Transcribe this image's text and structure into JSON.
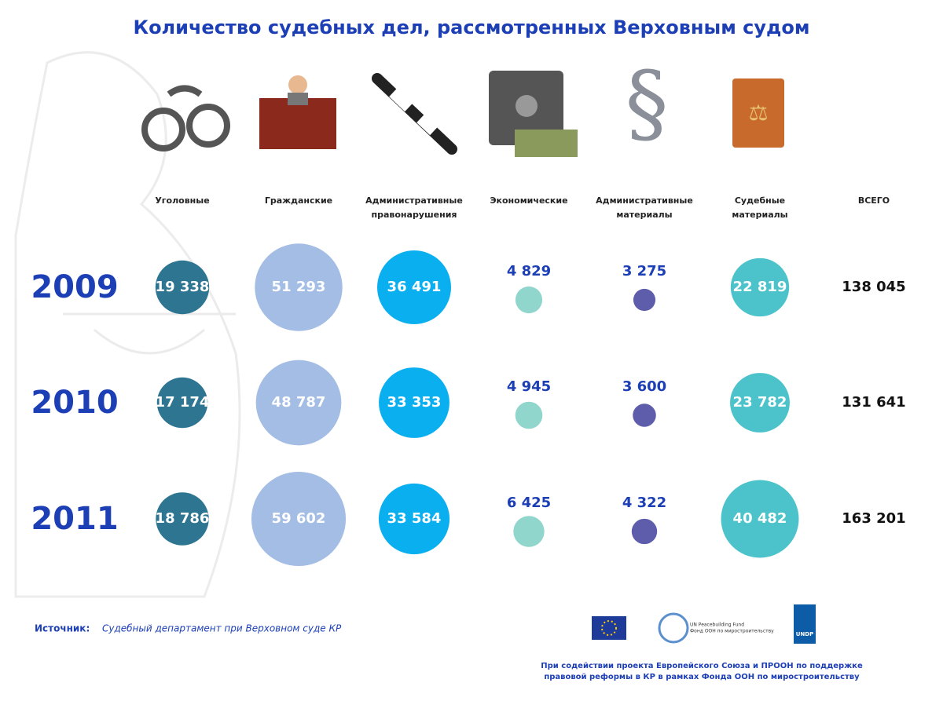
{
  "chart_data": {
    "type": "bubble",
    "title": "Количество судебных дел, рассмотренных Верховным судом",
    "categories": [
      "Уголовные",
      "Гражданские",
      "Административные правонарушения",
      "Экономические",
      "Административные материалы",
      "Судебные материалы"
    ],
    "colors": [
      "#2e7592",
      "#a3bde4",
      "#0aaff0",
      "#90d6cc",
      "#5d5dac",
      "#4cc3cb"
    ],
    "total_name": "ВСЕГО",
    "series": [
      {
        "name": "2009",
        "values": [
          19338,
          51293,
          36491,
          4829,
          3275,
          22819
        ],
        "value_labels": [
          "19 338",
          "51 293",
          "36 491",
          "4 829",
          "3 275",
          "22 819"
        ],
        "total": 138045,
        "total_label": "138 045"
      },
      {
        "name": "2010",
        "values": [
          17174,
          48787,
          33353,
          4945,
          3600,
          23782
        ],
        "value_labels": [
          "17 174",
          "48 787",
          "33 353",
          "4 945",
          "3 600",
          "23 782"
        ],
        "total": 131641,
        "total_label": "131 641"
      },
      {
        "name": "2011",
        "values": [
          18786,
          59602,
          33584,
          6425,
          4322,
          40482
        ],
        "value_labels": [
          "18 786",
          "59 602",
          "33 584",
          "6 425",
          "4 322",
          "40 482"
        ],
        "total": 163201,
        "total_label": "163 201"
      }
    ]
  },
  "source": {
    "label": "Источник:",
    "text": "Судебный департамент при Верховном суде КР"
  },
  "logos": {
    "un_fund_en": "UN Peacebuilding Fund",
    "un_fund_ru": "Фонд ООН по миростроительству",
    "undp": "UNDP"
  },
  "credit": [
    "При содействии проекта Европейского Союза и ПРООН по поддержке",
    "правовой реформы в КР в рамках Фонда ООН по миростроительству"
  ]
}
